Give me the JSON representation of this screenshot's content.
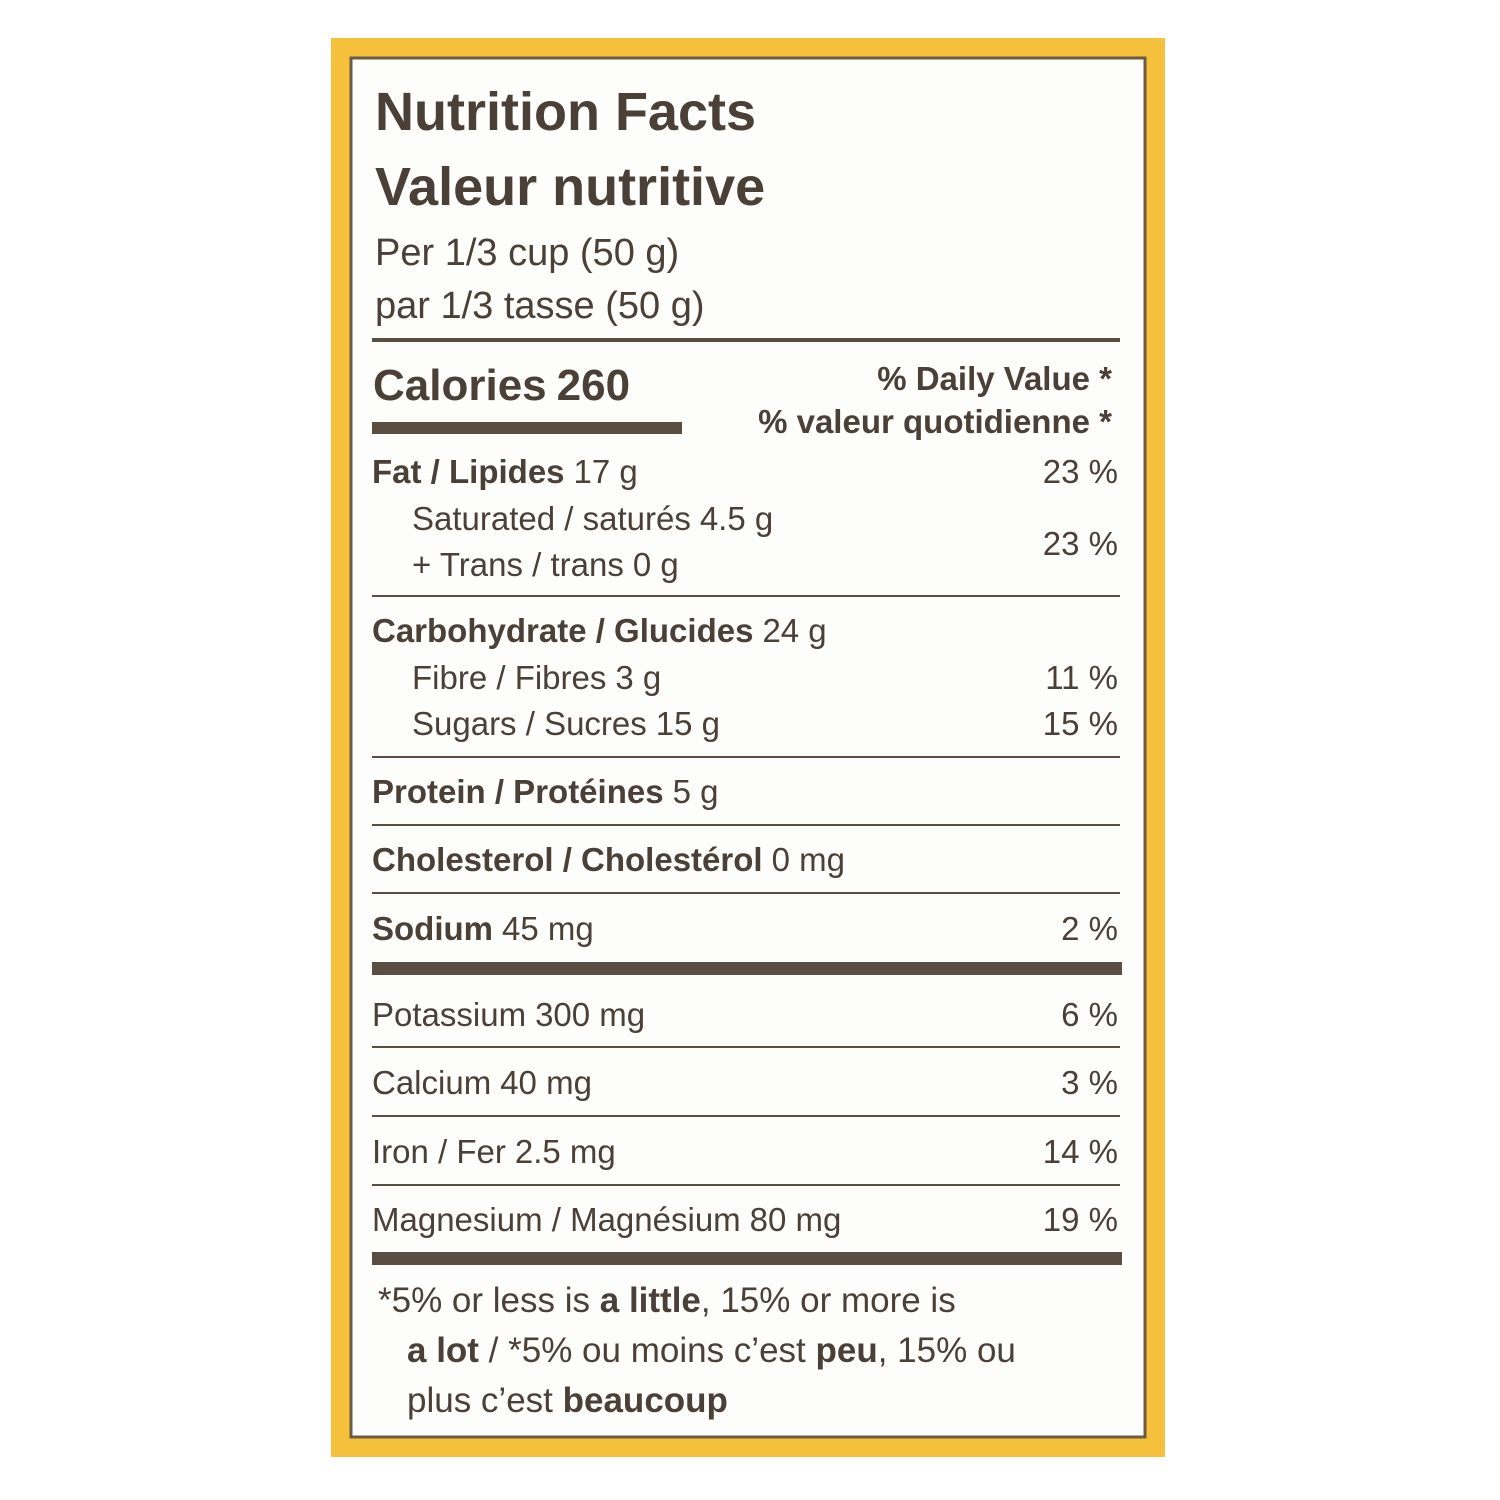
{
  "header": {
    "title_en": "Nutrition Facts",
    "title_fr": "Valeur nutritive",
    "serving_en": "Per 1/3 cup (50 g)",
    "serving_fr": "par 1/3 tasse (50 g)"
  },
  "calories": {
    "label": "Calories",
    "value": 260
  },
  "daily_value": {
    "en": "% Daily Value *",
    "fr": "% valeur quotidienne *"
  },
  "rows": [
    {
      "name": "Fat / Lipides",
      "amount": "17 g",
      "dv": "23 %"
    },
    {
      "name": "Saturated / saturés",
      "amount": "4.5 g",
      "dv": "23 %"
    },
    {
      "name": "+ Trans / trans",
      "amount": "0 g"
    },
    {
      "name": "Carbohydrate / Glucides",
      "amount": "24 g"
    },
    {
      "name": "Fibre / Fibres",
      "amount": "3 g",
      "dv": "11 %"
    },
    {
      "name": "Sugars / Sucres",
      "amount": "15 g",
      "dv": "15 %"
    },
    {
      "name": "Protein / Protéines",
      "amount": "5 g"
    },
    {
      "name": "Cholesterol / Cholestérol",
      "amount": "0 mg"
    },
    {
      "name": "Sodium",
      "amount": "45 mg",
      "dv": "2 %"
    },
    {
      "name": "Potassium",
      "amount": "300 mg",
      "dv": "6 %"
    },
    {
      "name": "Calcium",
      "amount": "40 mg",
      "dv": "3 %"
    },
    {
      "name": "Iron / Fer",
      "amount": "2.5 mg",
      "dv": "14 %"
    },
    {
      "name": "Magnesium / Magnésium",
      "amount": "80 mg",
      "dv": "19 %"
    }
  ],
  "footnote": {
    "lines": [
      [
        "*5% or less is ",
        "a little",
        ", 15% or more is"
      ],
      [
        "a lot",
        " / *5% ou moins c’est ",
        "peu",
        ", 15% ou"
      ],
      [
        "plus c’est ",
        "beaucoup"
      ]
    ]
  }
}
